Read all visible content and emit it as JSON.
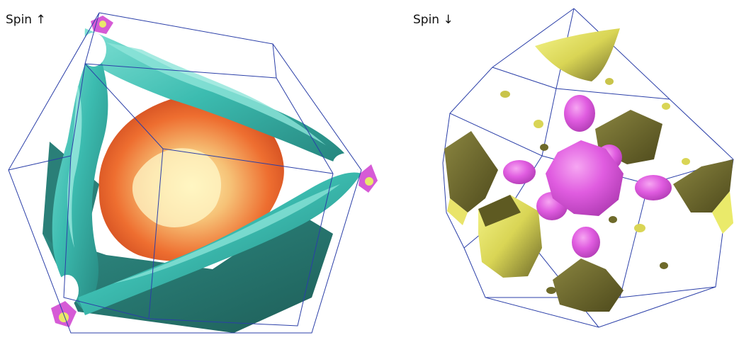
{
  "panels": {
    "up": {
      "label": "Spin ↑"
    },
    "down": {
      "label": "Spin ↓"
    }
  },
  "colors": {
    "background": "#ffffff",
    "wireframe": "#2b3fa8",
    "teal_sheet": "#3fbfb3",
    "orange_core": "#e8622c",
    "magenta_pocket": "#e05ce0",
    "yellow_pocket": "#eaea6a"
  }
}
